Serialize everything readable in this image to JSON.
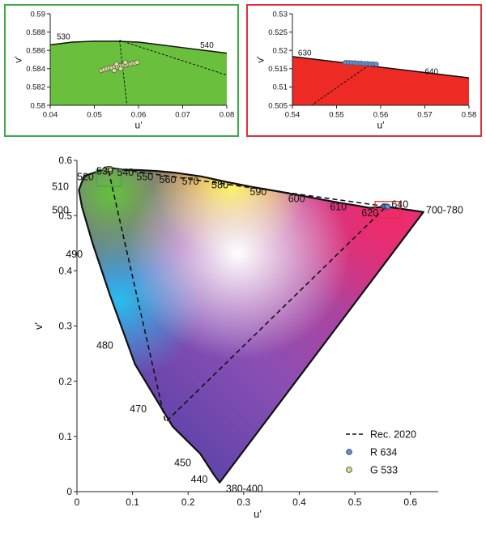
{
  "chart_data": [
    {
      "type": "scatter",
      "panel": "inset-green",
      "frame_color": "#3aaa4a",
      "fill_color": "#6abf3c",
      "xlabel": "u'",
      "ylabel": "v'",
      "xlim": [
        0.04,
        0.08
      ],
      "ylim": [
        0.58,
        0.59
      ],
      "xticks": [
        "0.04",
        "0.05",
        "0.06",
        "0.07",
        "0.08"
      ],
      "yticks": [
        "0.58",
        "0.582",
        "0.584",
        "0.586",
        "0.588",
        "0.59"
      ],
      "locus_labels": [
        {
          "text": "530",
          "u": 0.043,
          "v": 0.5872
        },
        {
          "text": "540",
          "u": 0.0755,
          "v": 0.5863
        }
      ],
      "locus_edge": [
        [
          0.04,
          0.5866
        ],
        [
          0.045,
          0.5869
        ],
        [
          0.05,
          0.587
        ],
        [
          0.055,
          0.587
        ],
        [
          0.06,
          0.5869
        ],
        [
          0.065,
          0.5866
        ],
        [
          0.07,
          0.5863
        ],
        [
          0.075,
          0.586
        ],
        [
          0.08,
          0.5857
        ]
      ],
      "rec2020_lines": [
        [
          [
            0.0557,
            0.5871
          ],
          [
            0.0574,
            0.58
          ]
        ],
        [
          [
            0.0557,
            0.5871
          ],
          [
            0.08,
            0.5833
          ]
        ]
      ],
      "series": [
        {
          "name": "G 533",
          "color": "#d3de8e",
          "points": [
            [
              0.0516,
              0.5838
            ],
            [
              0.0522,
              0.5839
            ],
            [
              0.0528,
              0.584
            ],
            [
              0.0534,
              0.5841
            ],
            [
              0.054,
              0.5841
            ],
            [
              0.0546,
              0.5842
            ],
            [
              0.0552,
              0.5842
            ],
            [
              0.0557,
              0.5843
            ],
            [
              0.0562,
              0.5843
            ],
            [
              0.0567,
              0.5844
            ],
            [
              0.0572,
              0.5844
            ],
            [
              0.0577,
              0.5845
            ],
            [
              0.0582,
              0.5845
            ],
            [
              0.0587,
              0.5846
            ],
            [
              0.0592,
              0.5846
            ],
            [
              0.0597,
              0.5847
            ],
            [
              0.055,
              0.5845
            ],
            [
              0.056,
              0.584
            ],
            [
              0.057,
              0.5847
            ],
            [
              0.0545,
              0.5838
            ]
          ]
        }
      ]
    },
    {
      "type": "scatter",
      "panel": "inset-red",
      "frame_color": "#e0303a",
      "fill_color": "#ee2a24",
      "xlabel": "u'",
      "ylabel": "v'",
      "xlim": [
        0.54,
        0.58
      ],
      "ylim": [
        0.505,
        0.53
      ],
      "xticks": [
        "0.54",
        "0.55",
        "0.56",
        "0.57",
        "0.58"
      ],
      "yticks": [
        "0.505",
        "0.51",
        "0.515",
        "0.52",
        "0.525",
        "0.53"
      ],
      "locus_labels": [
        {
          "text": "630",
          "u": 0.5428,
          "v": 0.5186
        },
        {
          "text": "640",
          "u": 0.5715,
          "v": 0.5135
        }
      ],
      "locus_edge": [
        [
          0.54,
          0.5183
        ],
        [
          0.58,
          0.5125
        ]
      ],
      "rec2020_lines": [
        [
          [
            0.5574,
            0.516
          ],
          [
            0.5443,
            0.505
          ]
        ]
      ],
      "series": [
        {
          "name": "R 634",
          "color": "#5b8fd4",
          "points": [
            [
              0.552,
              0.5167
            ],
            [
              0.5527,
              0.5167
            ],
            [
              0.5534,
              0.5166
            ],
            [
              0.5541,
              0.5166
            ],
            [
              0.5548,
              0.5165
            ],
            [
              0.5555,
              0.5165
            ],
            [
              0.5562,
              0.5164
            ],
            [
              0.5569,
              0.5164
            ],
            [
              0.5576,
              0.5163
            ],
            [
              0.5583,
              0.5163
            ],
            [
              0.559,
              0.5162
            ]
          ]
        }
      ]
    },
    {
      "type": "scatter",
      "panel": "main",
      "xlabel": "u'",
      "ylabel": "v'",
      "xlim": [
        0,
        0.65
      ],
      "ylim": [
        0,
        0.6
      ],
      "xticks": [
        "0",
        "0.1",
        "0.2",
        "0.3",
        "0.4",
        "0.5",
        "0.6"
      ],
      "yticks": [
        "0",
        "0.1",
        "0.2",
        "0.3",
        "0.4",
        "0.5",
        "0.6"
      ],
      "locus": [
        [
          0.2568,
          0.0165
        ],
        [
          0.2472,
          0.0295
        ],
        [
          0.2217,
          0.0688
        ],
        [
          0.1722,
          0.118
        ],
        [
          0.1045,
          0.2307
        ],
        [
          0.0593,
          0.3562
        ],
        [
          0.028,
          0.4502
        ],
        [
          0.009,
          0.516
        ],
        [
          0.0035,
          0.546
        ],
        [
          0.0128,
          0.5718
        ],
        [
          0.032,
          0.578
        ],
        [
          0.0558,
          0.5872
        ],
        [
          0.0801,
          0.5833
        ],
        [
          0.1111,
          0.5824
        ],
        [
          0.143,
          0.5807
        ],
        [
          0.1787,
          0.5774
        ],
        [
          0.2236,
          0.5709
        ],
        [
          0.2671,
          0.5613
        ],
        [
          0.3145,
          0.552
        ],
        [
          0.3625,
          0.5437
        ],
        [
          0.408,
          0.5353
        ],
        [
          0.447,
          0.5279
        ],
        [
          0.478,
          0.5224
        ],
        [
          0.5058,
          0.5178
        ],
        [
          0.5264,
          0.514
        ],
        [
          0.5577,
          0.516
        ],
        [
          0.6234,
          0.5065
        ]
      ],
      "wavelength_labels": [
        {
          "text": "380-400",
          "u": 0.268,
          "v": 0.005
        },
        {
          "text": "440",
          "u": 0.205,
          "v": 0.022
        },
        {
          "text": "450",
          "u": 0.175,
          "v": 0.052
        },
        {
          "text": "470",
          "u": 0.095,
          "v": 0.15
        },
        {
          "text": "480",
          "u": 0.035,
          "v": 0.265
        },
        {
          "text": "490",
          "u": -0.02,
          "v": 0.43
        },
        {
          "text": "500",
          "u": -0.045,
          "v": 0.51
        },
        {
          "text": "510",
          "u": -0.045,
          "v": 0.552
        },
        {
          "text": "520",
          "u": 0.0,
          "v": 0.57
        },
        {
          "text": "530",
          "u": 0.035,
          "v": 0.58
        },
        {
          "text": "540",
          "u": 0.072,
          "v": 0.578
        },
        {
          "text": "550",
          "u": 0.107,
          "v": 0.57
        },
        {
          "text": "560",
          "u": 0.148,
          "v": 0.565
        },
        {
          "text": "570",
          "u": 0.189,
          "v": 0.562
        },
        {
          "text": "580",
          "u": 0.242,
          "v": 0.555
        },
        {
          "text": "590",
          "u": 0.311,
          "v": 0.543
        },
        {
          "text": "600",
          "u": 0.38,
          "v": 0.53
        },
        {
          "text": "610",
          "u": 0.455,
          "v": 0.516
        },
        {
          "text": "620",
          "u": 0.512,
          "v": 0.505
        },
        {
          "text": "640",
          "u": 0.566,
          "v": 0.52
        },
        {
          "text": "700-780",
          "u": 0.628,
          "v": 0.51
        }
      ],
      "rec2020": [
        [
          0.0556,
          0.5868
        ],
        [
          0.5566,
          0.5165
        ],
        [
          0.1593,
          0.1258
        ]
      ],
      "zoom_boxes": [
        {
          "color": "#3aaa4a",
          "u0": 0.035,
          "u1": 0.08,
          "v0": 0.5535,
          "v1": 0.5835
        },
        {
          "color": "#e0303a",
          "u0": 0.5365,
          "u1": 0.5815,
          "v0": 0.4955,
          "v1": 0.5255
        }
      ],
      "series": [
        {
          "name": "R 634",
          "color": "#5b8fd4",
          "points": [
            [
              0.552,
              0.5167
            ],
            [
              0.5545,
              0.5166
            ],
            [
              0.557,
              0.5164
            ],
            [
              0.559,
              0.5162
            ]
          ]
        },
        {
          "name": "G 533",
          "color": "#d3de8e",
          "points": [
            [
              0.0516,
              0.5838
            ],
            [
              0.0545,
              0.5841
            ],
            [
              0.057,
              0.5844
            ],
            [
              0.0597,
              0.5847
            ]
          ]
        }
      ],
      "legend": {
        "placement": "bottom-right",
        "entries": [
          {
            "kind": "dashed-line",
            "label": "Rec. 2020"
          },
          {
            "kind": "marker",
            "label": "R 634",
            "color": "#5b8fd4"
          },
          {
            "kind": "marker",
            "label": "G 533",
            "color": "#d3de8e"
          }
        ]
      }
    }
  ]
}
